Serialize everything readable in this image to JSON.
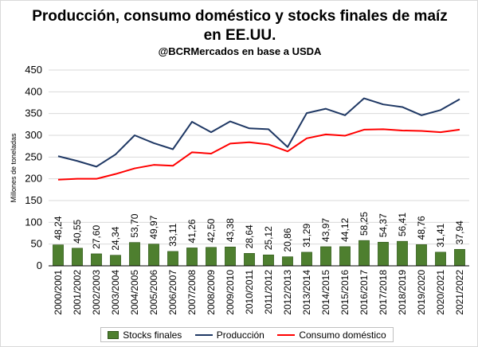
{
  "chart_data": {
    "type": "bar+line",
    "title_line1": "Producción, consumo doméstico y stocks finales de maíz",
    "title_line2": "en EE.UU.",
    "subtitle": "@BCRMercados en base a USDA",
    "ylabel": "Millones de toneladas",
    "ylim": [
      0,
      450
    ],
    "yticks": [
      0,
      50,
      100,
      150,
      200,
      250,
      300,
      350,
      400,
      450
    ],
    "grid": true,
    "categories": [
      "2000/2001",
      "2001/2002",
      "2002/2003",
      "2003/2004",
      "2004/2005",
      "2005/2006",
      "2006/2007",
      "2007/2008",
      "2008/2009",
      "2009/2010",
      "2010/2011",
      "2011/2012",
      "2012/2013",
      "2013/2014",
      "2014/2015",
      "2015/2016",
      "2016/2017",
      "2017/2018",
      "2018/2019",
      "2019/2020",
      "2020/2021",
      "2021/2022"
    ],
    "stocks": {
      "name": "Stocks finales",
      "values": [
        48.24,
        40.55,
        27.6,
        24.34,
        53.7,
        49.97,
        33.11,
        41.26,
        42.5,
        43.38,
        28.64,
        25.12,
        20.86,
        31.29,
        43.97,
        44.12,
        58.25,
        54.37,
        56.41,
        48.76,
        31.41,
        37.94
      ],
      "labels": [
        "48,24",
        "40,55",
        "27,60",
        "24,34",
        "53,70",
        "49,97",
        "33,11",
        "41,26",
        "42,50",
        "43,38",
        "28,64",
        "25,12",
        "20,86",
        "31,29",
        "43,97",
        "44,12",
        "58,25",
        "54,37",
        "56,41",
        "48,76",
        "31,41",
        "37,94"
      ],
      "color": "#4e7f2f"
    },
    "produccion": {
      "name": "Producción",
      "values": [
        252,
        241,
        228,
        256,
        300,
        282,
        268,
        331,
        307,
        332,
        316,
        314,
        273,
        351,
        361,
        346,
        385,
        371,
        365,
        346,
        358,
        383
      ],
      "color": "#1f3864"
    },
    "consumo": {
      "name": "Consumo doméstico",
      "values": [
        198,
        200,
        200,
        211,
        224,
        232,
        230,
        261,
        258,
        281,
        284,
        279,
        263,
        293,
        302,
        299,
        313,
        314,
        311,
        310,
        307,
        313
      ],
      "color": "#ff0000"
    },
    "legend_position": "bottom"
  }
}
